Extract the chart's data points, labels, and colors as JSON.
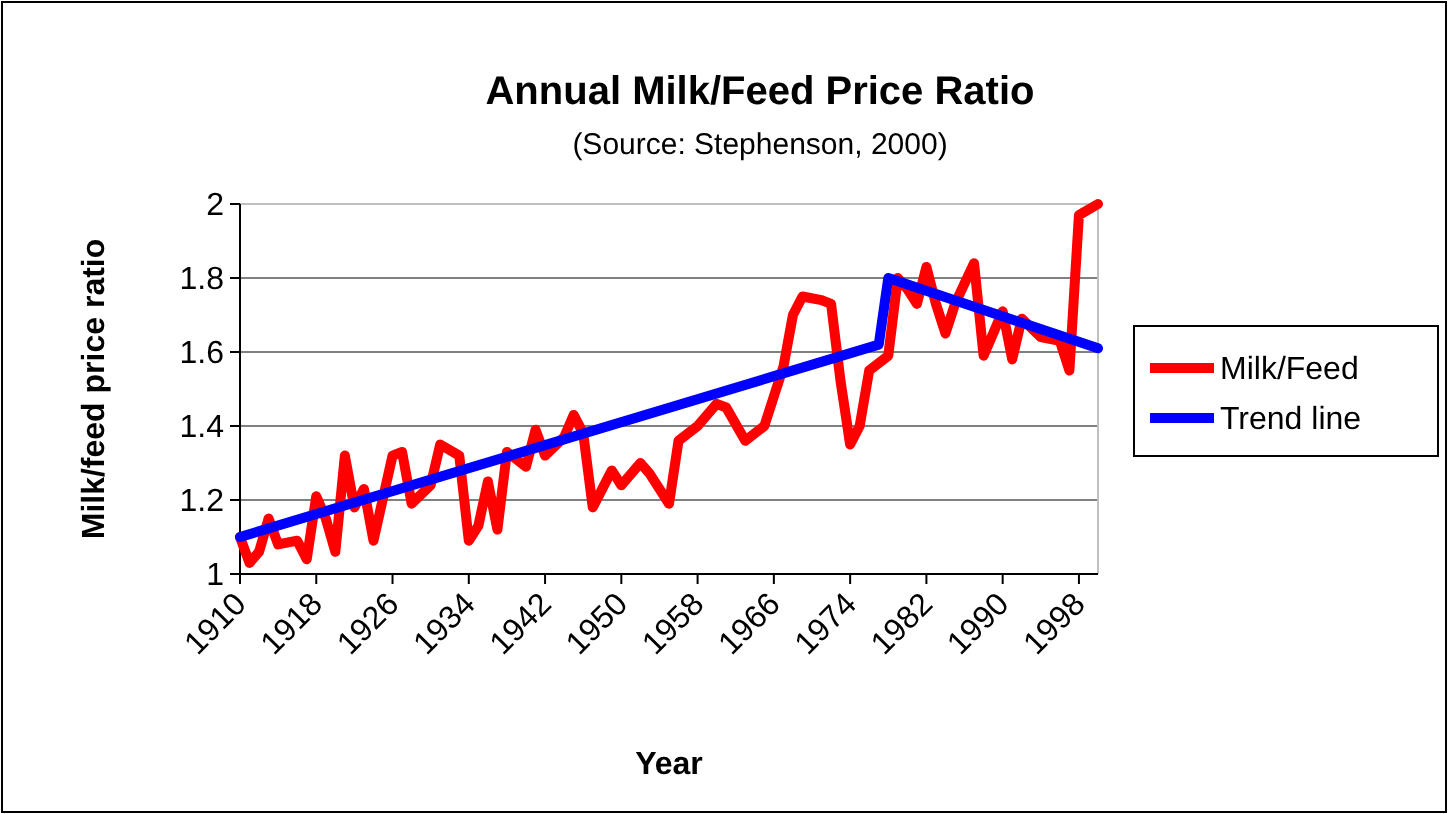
{
  "chart_data": {
    "type": "line",
    "title": "Annual Milk/Feed Price Ratio",
    "subtitle": "(Source: Stephenson, 2000)",
    "xlabel": "Year",
    "ylabel": "Milk/feed price ratio",
    "xlim": [
      1910,
      2000
    ],
    "xticks": [
      1910,
      1918,
      1926,
      1934,
      1942,
      1950,
      1958,
      1966,
      1974,
      1982,
      1990,
      1998
    ],
    "ylim": [
      1,
      2
    ],
    "yticks": [
      1,
      1.2,
      1.4,
      1.6,
      1.8,
      2
    ],
    "grid": "y",
    "legend": "right",
    "marker": "none",
    "line_style": "solid",
    "series": [
      {
        "name": "Milk/Feed",
        "color": "#ff0000",
        "x": [
          1910,
          1911,
          1912,
          1913,
          1914,
          1916,
          1917,
          1918,
          1919,
          1920,
          1921,
          1922,
          1923,
          1924,
          1926,
          1927,
          1928,
          1930,
          1931,
          1933,
          1934,
          1935,
          1936,
          1937,
          1938,
          1940,
          1941,
          1942,
          1944,
          1945,
          1946,
          1947,
          1949,
          1950,
          1952,
          1953,
          1955,
          1956,
          1958,
          1960,
          1961,
          1963,
          1965,
          1967,
          1968,
          1969,
          1971,
          1972,
          1973,
          1974,
          1975,
          1976,
          1978,
          1979,
          1980,
          1981,
          1982,
          1983,
          1984,
          1985,
          1987,
          1988,
          1990,
          1991,
          1992,
          1994,
          1996,
          1997,
          1998,
          2000
        ],
        "values": [
          1.1,
          1.03,
          1.06,
          1.15,
          1.08,
          1.09,
          1.04,
          1.21,
          1.15,
          1.06,
          1.32,
          1.18,
          1.23,
          1.09,
          1.32,
          1.33,
          1.19,
          1.24,
          1.35,
          1.32,
          1.09,
          1.13,
          1.25,
          1.12,
          1.33,
          1.29,
          1.39,
          1.32,
          1.37,
          1.43,
          1.38,
          1.18,
          1.28,
          1.24,
          1.3,
          1.27,
          1.19,
          1.36,
          1.4,
          1.46,
          1.45,
          1.36,
          1.4,
          1.56,
          1.7,
          1.75,
          1.74,
          1.73,
          1.52,
          1.35,
          1.4,
          1.55,
          1.59,
          1.8,
          1.77,
          1.73,
          1.83,
          1.73,
          1.65,
          1.73,
          1.84,
          1.59,
          1.71,
          1.58,
          1.69,
          1.64,
          1.63,
          1.55,
          1.97,
          2.0
        ]
      },
      {
        "name": "Trend line",
        "color": "#0000ff",
        "x": [
          1910,
          1977,
          1978,
          2000
        ],
        "values": [
          1.1,
          1.62,
          1.8,
          1.61
        ]
      }
    ]
  }
}
